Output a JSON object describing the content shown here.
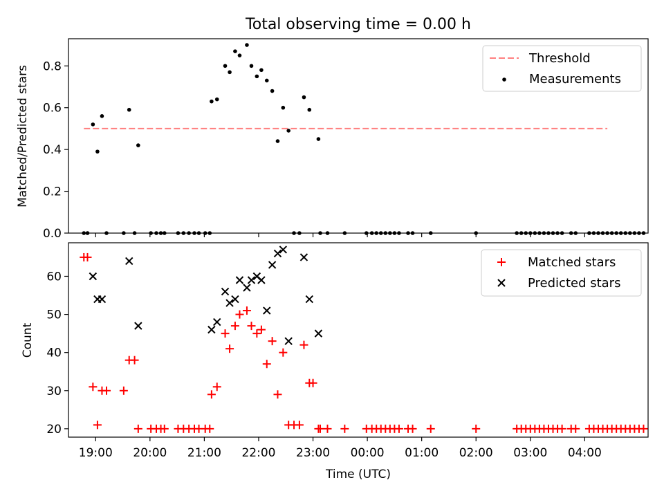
{
  "chart_data": [
    {
      "type": "scatter",
      "title": "Total observing time = 0.00 h",
      "xlabel": "",
      "ylabel": "Matched/Predicted stars",
      "xlim": [
        "18:30",
        "05:10"
      ],
      "ylim": [
        0,
        0.93
      ],
      "yticks": [
        0.0,
        0.2,
        0.4,
        0.6,
        0.8
      ],
      "ytick_labels": [
        "0.0",
        "0.2",
        "0.4",
        "0.6",
        "0.8"
      ],
      "grid": false,
      "legend_position": "upper right",
      "threshold": {
        "name": "Threshold",
        "value": 0.5,
        "x": [
          "18:47",
          "04:25"
        ],
        "color": "#ff7f7f",
        "style": "dashed"
      },
      "series": [
        {
          "name": "Measurements",
          "marker": "dot",
          "color": "#000000",
          "points": [
            [
              "18:47",
              0
            ],
            [
              "18:51",
              0
            ],
            [
              "18:57",
              0.52
            ],
            [
              "19:02",
              0.39
            ],
            [
              "19:07",
              0.56
            ],
            [
              "19:12",
              0
            ],
            [
              "19:31",
              0
            ],
            [
              "19:37",
              0.59
            ],
            [
              "19:43",
              0
            ],
            [
              "19:47",
              0.42
            ],
            [
              "20:01",
              0
            ],
            [
              "20:07",
              0
            ],
            [
              "20:12",
              0
            ],
            [
              "20:16",
              0
            ],
            [
              "20:31",
              0
            ],
            [
              "20:37",
              0
            ],
            [
              "20:43",
              0
            ],
            [
              "20:49",
              0
            ],
            [
              "20:54",
              0
            ],
            [
              "21:01",
              0
            ],
            [
              "21:06",
              0
            ],
            [
              "21:08",
              0.63
            ],
            [
              "21:14",
              0.64
            ],
            [
              "21:23",
              0.8
            ],
            [
              "21:28",
              0.77
            ],
            [
              "21:34",
              0.87
            ],
            [
              "21:39",
              0.85
            ],
            [
              "21:47",
              0.9
            ],
            [
              "21:52",
              0.8
            ],
            [
              "21:58",
              0.75
            ],
            [
              "22:03",
              0.78
            ],
            [
              "22:09",
              0.73
            ],
            [
              "22:15",
              0.68
            ],
            [
              "22:21",
              0.44
            ],
            [
              "22:27",
              0.6
            ],
            [
              "22:33",
              0.49
            ],
            [
              "22:39",
              0
            ],
            [
              "22:45",
              0
            ],
            [
              "22:50",
              0.65
            ],
            [
              "22:56",
              0.59
            ],
            [
              "23:06",
              0.45
            ],
            [
              "23:08",
              0
            ],
            [
              "23:16",
              0
            ],
            [
              "23:35",
              0
            ],
            [
              "23:59",
              0
            ],
            [
              "00:05",
              0
            ],
            [
              "00:10",
              0
            ],
            [
              "00:15",
              0
            ],
            [
              "00:20",
              0
            ],
            [
              "00:25",
              0
            ],
            [
              "00:30",
              0
            ],
            [
              "00:35",
              0
            ],
            [
              "00:45",
              0
            ],
            [
              "00:50",
              0
            ],
            [
              "01:10",
              0
            ],
            [
              "02:00",
              0
            ],
            [
              "02:45",
              0
            ],
            [
              "02:50",
              0
            ],
            [
              "02:55",
              0
            ],
            [
              "03:00",
              0
            ],
            [
              "03:05",
              0
            ],
            [
              "03:10",
              0
            ],
            [
              "03:15",
              0
            ],
            [
              "03:20",
              0
            ],
            [
              "03:25",
              0
            ],
            [
              "03:30",
              0
            ],
            [
              "03:35",
              0
            ],
            [
              "03:45",
              0
            ],
            [
              "03:50",
              0
            ],
            [
              "04:05",
              0
            ],
            [
              "04:10",
              0
            ],
            [
              "04:15",
              0
            ],
            [
              "04:20",
              0
            ],
            [
              "04:25",
              0
            ],
            [
              "04:30",
              0
            ],
            [
              "04:35",
              0
            ],
            [
              "04:40",
              0
            ],
            [
              "04:45",
              0
            ],
            [
              "04:50",
              0
            ],
            [
              "04:55",
              0
            ],
            [
              "05:00",
              0
            ],
            [
              "05:05",
              0
            ]
          ]
        }
      ]
    },
    {
      "type": "scatter",
      "title": "",
      "xlabel": "Time (UTC)",
      "ylabel": "Count",
      "xlim": [
        "18:30",
        "05:10"
      ],
      "ylim": [
        17.8,
        68.8
      ],
      "yticks": [
        20,
        30,
        40,
        50,
        60
      ],
      "ytick_labels": [
        "20",
        "30",
        "40",
        "50",
        "60"
      ],
      "xticks": [
        "19:00",
        "20:00",
        "21:00",
        "22:00",
        "23:00",
        "00:00",
        "01:00",
        "02:00",
        "03:00",
        "04:00"
      ],
      "grid": false,
      "legend_position": "upper right",
      "series": [
        {
          "name": "Matched stars",
          "marker": "plus",
          "color": "#ff0000",
          "points": [
            [
              "18:47",
              65
            ],
            [
              "18:51",
              65
            ],
            [
              "18:57",
              31
            ],
            [
              "19:02",
              21
            ],
            [
              "19:07",
              30
            ],
            [
              "19:12",
              30
            ],
            [
              "19:31",
              30
            ],
            [
              "19:37",
              38
            ],
            [
              "19:43",
              38
            ],
            [
              "19:47",
              20
            ],
            [
              "20:01",
              20
            ],
            [
              "20:07",
              20
            ],
            [
              "20:12",
              20
            ],
            [
              "20:16",
              20
            ],
            [
              "20:31",
              20
            ],
            [
              "20:37",
              20
            ],
            [
              "20:43",
              20
            ],
            [
              "20:49",
              20
            ],
            [
              "20:54",
              20
            ],
            [
              "21:01",
              20
            ],
            [
              "21:06",
              20
            ],
            [
              "21:08",
              29
            ],
            [
              "21:14",
              31
            ],
            [
              "21:23",
              45
            ],
            [
              "21:28",
              41
            ],
            [
              "21:34",
              47
            ],
            [
              "21:39",
              50
            ],
            [
              "21:47",
              51
            ],
            [
              "21:52",
              47
            ],
            [
              "21:58",
              45
            ],
            [
              "22:03",
              46
            ],
            [
              "22:09",
              37
            ],
            [
              "22:15",
              43
            ],
            [
              "22:21",
              29
            ],
            [
              "22:27",
              40
            ],
            [
              "22:33",
              21
            ],
            [
              "22:39",
              21
            ],
            [
              "22:45",
              21
            ],
            [
              "22:50",
              42
            ],
            [
              "22:56",
              32
            ],
            [
              "23:00",
              32
            ],
            [
              "23:06",
              20
            ],
            [
              "23:08",
              20
            ],
            [
              "23:16",
              20
            ],
            [
              "23:35",
              20
            ],
            [
              "23:59",
              20
            ],
            [
              "00:05",
              20
            ],
            [
              "00:10",
              20
            ],
            [
              "00:15",
              20
            ],
            [
              "00:20",
              20
            ],
            [
              "00:25",
              20
            ],
            [
              "00:30",
              20
            ],
            [
              "00:35",
              20
            ],
            [
              "00:45",
              20
            ],
            [
              "00:50",
              20
            ],
            [
              "01:10",
              20
            ],
            [
              "02:00",
              20
            ],
            [
              "02:45",
              20
            ],
            [
              "02:50",
              20
            ],
            [
              "02:55",
              20
            ],
            [
              "03:00",
              20
            ],
            [
              "03:05",
              20
            ],
            [
              "03:10",
              20
            ],
            [
              "03:15",
              20
            ],
            [
              "03:20",
              20
            ],
            [
              "03:25",
              20
            ],
            [
              "03:30",
              20
            ],
            [
              "03:35",
              20
            ],
            [
              "03:45",
              20
            ],
            [
              "03:50",
              20
            ],
            [
              "04:05",
              20
            ],
            [
              "04:10",
              20
            ],
            [
              "04:15",
              20
            ],
            [
              "04:20",
              20
            ],
            [
              "04:25",
              20
            ],
            [
              "04:30",
              20
            ],
            [
              "04:35",
              20
            ],
            [
              "04:40",
              20
            ],
            [
              "04:45",
              20
            ],
            [
              "04:50",
              20
            ],
            [
              "04:55",
              20
            ],
            [
              "05:00",
              20
            ],
            [
              "05:05",
              20
            ]
          ]
        },
        {
          "name": "Predicted stars",
          "marker": "x",
          "color": "#000000",
          "points": [
            [
              "18:57",
              60
            ],
            [
              "19:02",
              54
            ],
            [
              "19:07",
              54
            ],
            [
              "19:37",
              64
            ],
            [
              "19:47",
              47
            ],
            [
              "21:08",
              46
            ],
            [
              "21:14",
              48
            ],
            [
              "21:23",
              56
            ],
            [
              "21:28",
              53
            ],
            [
              "21:34",
              54
            ],
            [
              "21:39",
              59
            ],
            [
              "21:47",
              57
            ],
            [
              "21:52",
              59
            ],
            [
              "21:58",
              60
            ],
            [
              "22:03",
              59
            ],
            [
              "22:09",
              51
            ],
            [
              "22:15",
              63
            ],
            [
              "22:21",
              66
            ],
            [
              "22:27",
              67
            ],
            [
              "22:33",
              43
            ],
            [
              "22:50",
              65
            ],
            [
              "22:56",
              54
            ],
            [
              "23:06",
              45
            ]
          ]
        }
      ]
    }
  ]
}
